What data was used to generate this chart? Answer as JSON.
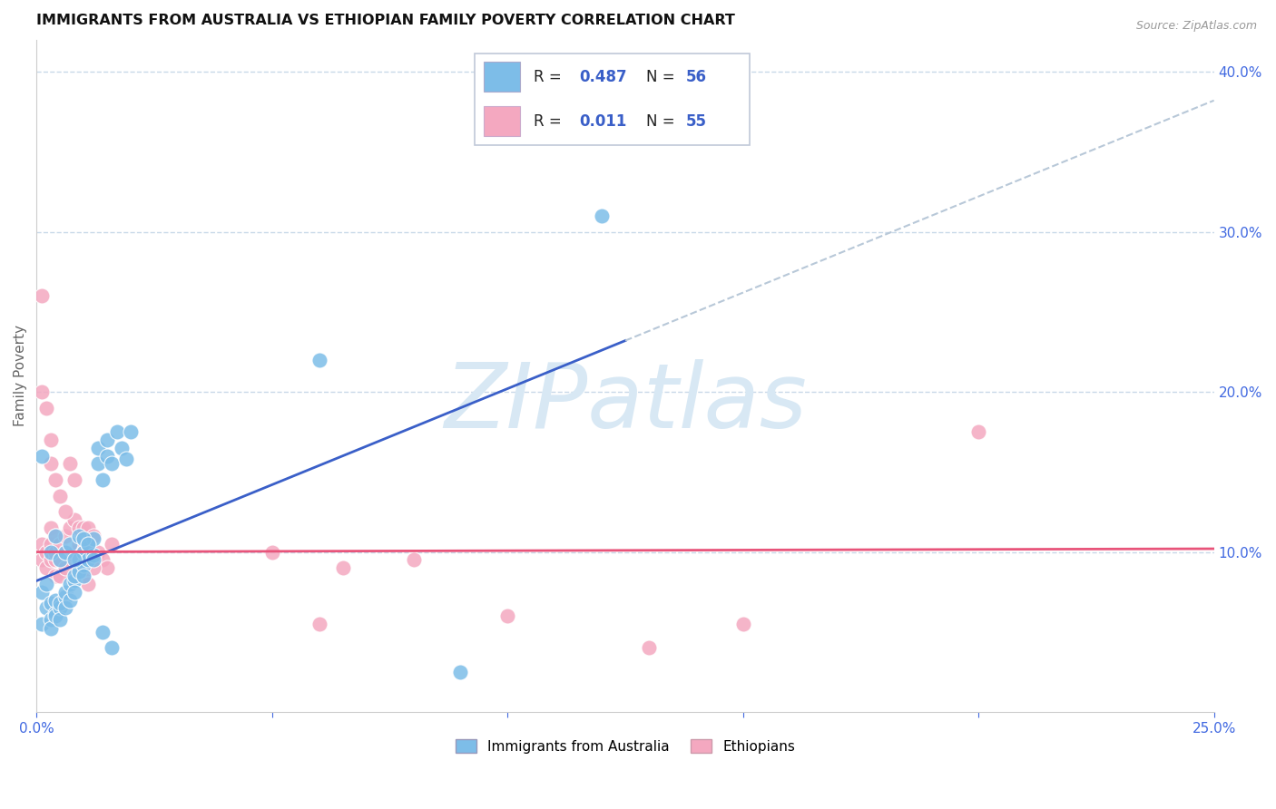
{
  "title": "IMMIGRANTS FROM AUSTRALIA VS ETHIOPIAN FAMILY POVERTY CORRELATION CHART",
  "source": "Source: ZipAtlas.com",
  "ylabel": "Family Poverty",
  "xlim": [
    0.0,
    0.25
  ],
  "ylim": [
    0.0,
    0.42
  ],
  "xticks": [
    0.0,
    0.05,
    0.1,
    0.15,
    0.2,
    0.25
  ],
  "xtick_labels": [
    "0.0%",
    "",
    "",
    "",
    "",
    "25.0%"
  ],
  "yticks": [
    0.1,
    0.2,
    0.3,
    0.4
  ],
  "ytick_labels": [
    "10.0%",
    "20.0%",
    "30.0%",
    "40.0%"
  ],
  "r_australia": 0.487,
  "n_australia": 56,
  "r_ethiopian": 0.011,
  "n_ethiopian": 55,
  "color_australia": "#7dbde8",
  "color_ethiopian": "#f4a8c0",
  "trend_australia_color": "#3a5fc8",
  "trend_ethiopian_color": "#e8547a",
  "trend_dashed_color": "#b8c8d8",
  "watermark": "ZIPatlas",
  "watermark_color": "#d8e8f4",
  "background_color": "#ffffff",
  "grid_color": "#c8d8e8",
  "legend_text_color": "#3a5fc8",
  "australia_x": [
    0.001,
    0.001,
    0.002,
    0.002,
    0.003,
    0.003,
    0.003,
    0.004,
    0.004,
    0.004,
    0.005,
    0.005,
    0.005,
    0.006,
    0.006,
    0.006,
    0.007,
    0.007,
    0.008,
    0.008,
    0.008,
    0.009,
    0.009,
    0.01,
    0.01,
    0.01,
    0.011,
    0.011,
    0.012,
    0.012,
    0.013,
    0.013,
    0.014,
    0.015,
    0.015,
    0.016,
    0.017,
    0.018,
    0.019,
    0.02,
    0.003,
    0.004,
    0.005,
    0.006,
    0.007,
    0.008,
    0.009,
    0.01,
    0.011,
    0.012,
    0.014,
    0.016,
    0.06,
    0.09,
    0.12,
    0.001
  ],
  "australia_y": [
    0.055,
    0.075,
    0.065,
    0.08,
    0.068,
    0.058,
    0.052,
    0.062,
    0.07,
    0.06,
    0.065,
    0.058,
    0.068,
    0.072,
    0.065,
    0.075,
    0.08,
    0.07,
    0.082,
    0.075,
    0.085,
    0.088,
    0.095,
    0.092,
    0.1,
    0.085,
    0.095,
    0.105,
    0.098,
    0.108,
    0.155,
    0.165,
    0.145,
    0.16,
    0.17,
    0.155,
    0.175,
    0.165,
    0.158,
    0.175,
    0.1,
    0.11,
    0.095,
    0.1,
    0.105,
    0.095,
    0.11,
    0.108,
    0.105,
    0.095,
    0.05,
    0.04,
    0.22,
    0.025,
    0.31,
    0.16
  ],
  "ethiopian_x": [
    0.001,
    0.001,
    0.002,
    0.002,
    0.003,
    0.003,
    0.003,
    0.004,
    0.004,
    0.004,
    0.005,
    0.005,
    0.006,
    0.006,
    0.007,
    0.007,
    0.008,
    0.008,
    0.009,
    0.009,
    0.01,
    0.01,
    0.011,
    0.011,
    0.012,
    0.012,
    0.013,
    0.014,
    0.015,
    0.016,
    0.003,
    0.004,
    0.005,
    0.006,
    0.007,
    0.008,
    0.009,
    0.01,
    0.011,
    0.012,
    0.001,
    0.002,
    0.003,
    0.004,
    0.005,
    0.006,
    0.05,
    0.065,
    0.08,
    0.1,
    0.001,
    0.06,
    0.13,
    0.15,
    0.2
  ],
  "ethiopian_y": [
    0.095,
    0.105,
    0.09,
    0.1,
    0.095,
    0.105,
    0.115,
    0.095,
    0.1,
    0.11,
    0.095,
    0.105,
    0.1,
    0.11,
    0.095,
    0.115,
    0.1,
    0.12,
    0.105,
    0.115,
    0.1,
    0.115,
    0.105,
    0.115,
    0.095,
    0.11,
    0.1,
    0.095,
    0.09,
    0.105,
    0.155,
    0.145,
    0.135,
    0.125,
    0.155,
    0.145,
    0.09,
    0.085,
    0.08,
    0.09,
    0.2,
    0.19,
    0.17,
    0.085,
    0.085,
    0.09,
    0.1,
    0.09,
    0.095,
    0.06,
    0.26,
    0.055,
    0.04,
    0.055,
    0.175
  ],
  "trend_australia_x0": 0.0,
  "trend_australia_y0": 0.082,
  "trend_australia_x1": 0.125,
  "trend_australia_y1": 0.232,
  "trend_ethiopian_x0": 0.0,
  "trend_ethiopian_y0": 0.1,
  "trend_ethiopian_x1": 0.25,
  "trend_ethiopian_y1": 0.102,
  "trend_solid_end": 0.125,
  "trend_dashed_start": 0.125
}
